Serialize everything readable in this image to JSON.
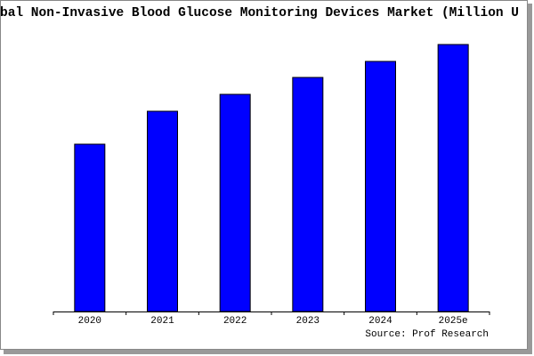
{
  "chart_data": {
    "type": "bar",
    "title": "bal Non-Invasive Blood Glucose Monitoring Devices Market (Million U",
    "categories": [
      "2020",
      "2021",
      "2022",
      "2023",
      "2024",
      "2025e"
    ],
    "values": [
      188,
      225,
      244,
      263,
      281,
      300
    ],
    "color": "#0000ff",
    "ylim": [
      0,
      302
    ],
    "source": "Source: Prof Research"
  }
}
